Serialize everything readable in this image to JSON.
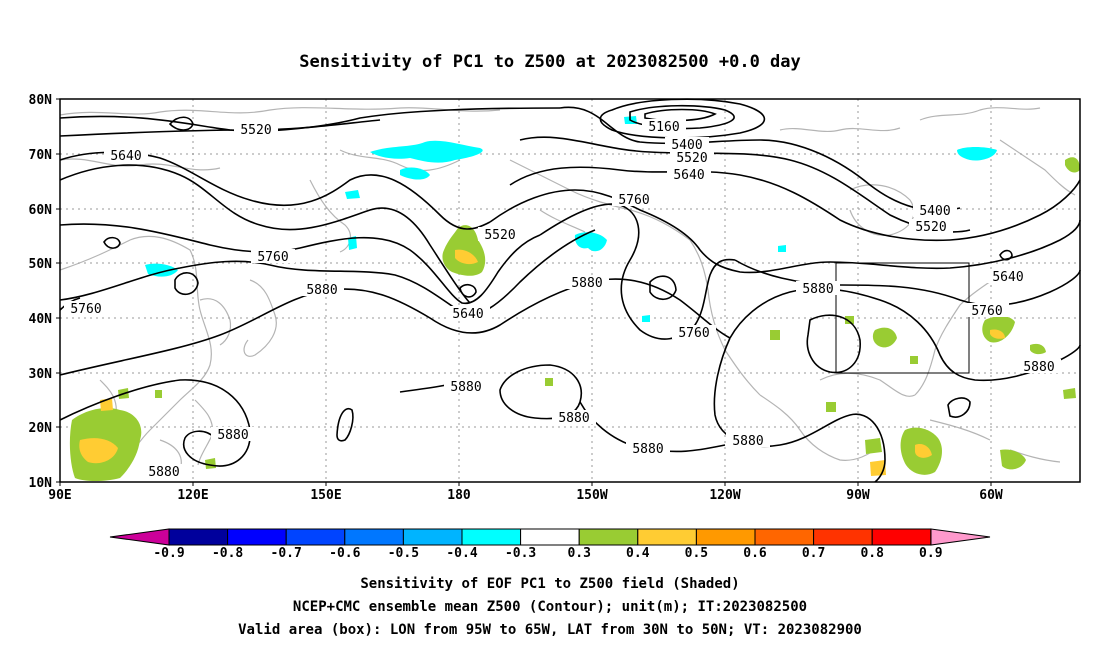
{
  "title": "Sensitivity of PC1 to Z500 at 2023082500 +0.0 day",
  "lat_labels": [
    "80N",
    "70N",
    "60N",
    "50N",
    "40N",
    "30N",
    "20N",
    "10N"
  ],
  "lon_labels": [
    "90E",
    "120E",
    "150E",
    "180",
    "150W",
    "120W",
    "90W",
    "60W"
  ],
  "contour_labels": [
    {
      "id": "c5520a",
      "text": "5520"
    },
    {
      "id": "c5640a",
      "text": "5640"
    },
    {
      "id": "c5160",
      "text": "5160"
    },
    {
      "id": "c5400a",
      "text": "5400"
    },
    {
      "id": "c5520b",
      "text": "5520"
    },
    {
      "id": "c5640b",
      "text": "5640"
    },
    {
      "id": "c5760a",
      "text": "5760"
    },
    {
      "id": "c5520c",
      "text": "5520"
    },
    {
      "id": "c5760b",
      "text": "5760"
    },
    {
      "id": "c5880a",
      "text": "5880"
    },
    {
      "id": "c5640c",
      "text": "5640"
    },
    {
      "id": "c5760c",
      "text": "5760"
    },
    {
      "id": "c5880b",
      "text": "5880"
    },
    {
      "id": "c5760d",
      "text": "5760"
    },
    {
      "id": "c5880c",
      "text": "5880"
    },
    {
      "id": "c5400b",
      "text": "5400"
    },
    {
      "id": "c5520d",
      "text": "5520"
    },
    {
      "id": "c5640d",
      "text": "5640"
    },
    {
      "id": "c5760e",
      "text": "5760"
    },
    {
      "id": "c5880d",
      "text": "5880"
    },
    {
      "id": "c5880e",
      "text": "5880"
    },
    {
      "id": "c5880f",
      "text": "5880"
    },
    {
      "id": "c5880g",
      "text": "5880"
    },
    {
      "id": "c5880h",
      "text": "5880"
    },
    {
      "id": "c5880i",
      "text": "5880"
    },
    {
      "id": "c5880j",
      "text": "5880"
    }
  ],
  "colorbar": {
    "ticks": [
      "-0.9",
      "-0.8",
      "-0.7",
      "-0.6",
      "-0.5",
      "-0.4",
      "-0.3",
      "0.3",
      "0.4",
      "0.5",
      "0.6",
      "0.7",
      "0.8",
      "0.9"
    ],
    "colors": [
      "#00009c",
      "#0000ff",
      "#0044ff",
      "#0077ff",
      "#00b4ff",
      "#00ffff",
      "#ffffff",
      "#99cc33",
      "#ffcc33",
      "#ff9900",
      "#ff6600",
      "#ff3300",
      "#ff0000"
    ],
    "low_arrow_color": "#cc0099",
    "high_arrow_color": "#ff99cc"
  },
  "valid_box": {
    "lon_west": "95W",
    "lon_east": "65W",
    "lat_south": "30N",
    "lat_north": "50N"
  },
  "caption": [
    "Sensitivity of EOF PC1 to Z500 field (Shaded)",
    "NCEP+CMC ensemble mean Z500 (Contour); unit(m); IT:2023082500",
    "Valid area (box): LON from 95W to 65W, LAT from 30N to 50N; VT: 2023082900"
  ]
}
